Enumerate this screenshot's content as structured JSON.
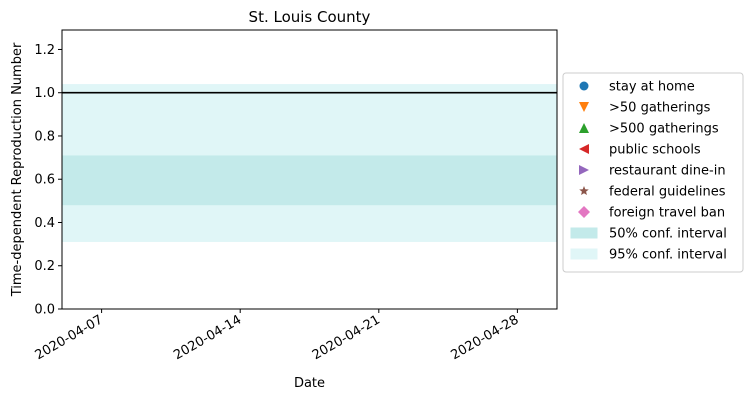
{
  "chart_data": {
    "type": "area",
    "title": "St. Louis County",
    "xlabel": "Date",
    "ylabel": "Time-dependent Reproduction Number",
    "x_range": [
      "2020-04-05",
      "2020-04-30"
    ],
    "ylim": [
      0,
      1.29
    ],
    "y_ticks": [
      0.0,
      0.2,
      0.4,
      0.6,
      0.8,
      1.0,
      1.2
    ],
    "y_tick_labels": [
      "0.0",
      "0.2",
      "0.4",
      "0.6",
      "0.8",
      "1.0",
      "1.2"
    ],
    "x_ticks": [
      "2020-04-07",
      "2020-04-14",
      "2020-04-21",
      "2020-04-28"
    ],
    "x_tick_labels": [
      "2020-04-07",
      "2020-04-14",
      "2020-04-21",
      "2020-04-28"
    ],
    "reference_line": {
      "y": 1.0,
      "color": "#000000"
    },
    "bands": [
      {
        "name": "50% conf. interval",
        "x": [
          "2020-04-05",
          "2020-04-30"
        ],
        "lower": 0.48,
        "upper": 0.71,
        "color": "#c3eaea"
      },
      {
        "name": "95% conf. interval",
        "x": [
          "2020-04-05",
          "2020-04-30"
        ],
        "lower": 0.31,
        "upper": 1.04,
        "color": "#e0f6f7"
      }
    ],
    "legend": {
      "placement": "outside-right",
      "entries": [
        {
          "label": "stay at home",
          "marker": "circle",
          "color": "#1f77b4"
        },
        {
          "label": ">50 gatherings",
          "marker": "triangle-down",
          "color": "#ff7f0e"
        },
        {
          "label": ">500 gatherings",
          "marker": "triangle-up",
          "color": "#2ca02c"
        },
        {
          "label": "public schools",
          "marker": "triangle-left",
          "color": "#d62728"
        },
        {
          "label": "restaurant dine-in",
          "marker": "triangle-right",
          "color": "#9467bd"
        },
        {
          "label": "federal guidelines",
          "marker": "star",
          "color": "#8c564b"
        },
        {
          "label": "foreign travel ban",
          "marker": "diamond",
          "color": "#e377c2"
        },
        {
          "label": "50% conf. interval",
          "marker": "patch",
          "color": "#c3eaea"
        },
        {
          "label": "95% conf. interval",
          "marker": "patch",
          "color": "#e0f6f7"
        }
      ]
    },
    "grid": false
  }
}
